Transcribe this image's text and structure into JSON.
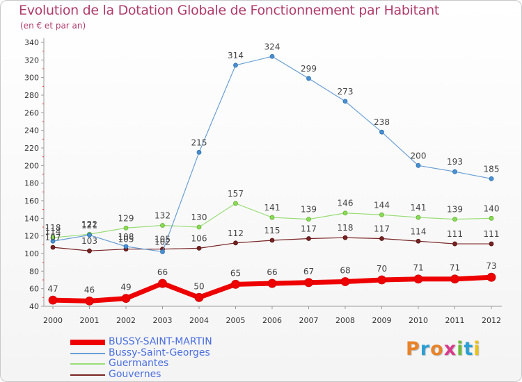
{
  "header": {
    "title": "Evolution de la Dotation Globale de Fonctionnement par Habitant",
    "subtitle": "(en € et par an)"
  },
  "logo": {
    "text": "Proxiti",
    "colors": [
      "#e8832a",
      "#2a9fd6",
      "#e8832a",
      "#d93b8c",
      "#6cbb3c",
      "#2a9fd6",
      "#e8c21a"
    ]
  },
  "chart_data": {
    "type": "line",
    "x": [
      2000,
      2001,
      2002,
      2003,
      2004,
      2005,
      2006,
      2007,
      2008,
      2009,
      2010,
      2011,
      2012
    ],
    "ylim": [
      40,
      340
    ],
    "yticks": [
      40,
      60,
      80,
      100,
      120,
      140,
      160,
      180,
      200,
      220,
      240,
      260,
      280,
      300,
      320,
      340
    ],
    "grid": false,
    "legend_position": "bottom-left",
    "series": [
      {
        "name": "BUSSY-SAINT-MARTIN",
        "color": "#ee0000",
        "values": [
          47,
          46,
          49,
          66,
          50,
          65,
          66,
          67,
          68,
          70,
          71,
          71,
          73
        ]
      },
      {
        "name": "Bussy-Saint-Georges",
        "color": "#6a9fd6",
        "values": [
          114,
          121,
          108,
          102,
          215,
          314,
          324,
          299,
          273,
          238,
          200,
          193,
          185
        ]
      },
      {
        "name": "Guermantes",
        "color": "#99dd77",
        "values": [
          118,
          122,
          129,
          132,
          130,
          157,
          141,
          139,
          146,
          144,
          141,
          139,
          140
        ]
      },
      {
        "name": "Gouvernes",
        "color": "#772222",
        "values": [
          107,
          103,
          105,
          105,
          106,
          112,
          115,
          117,
          118,
          117,
          114,
          111,
          111
        ]
      }
    ]
  }
}
